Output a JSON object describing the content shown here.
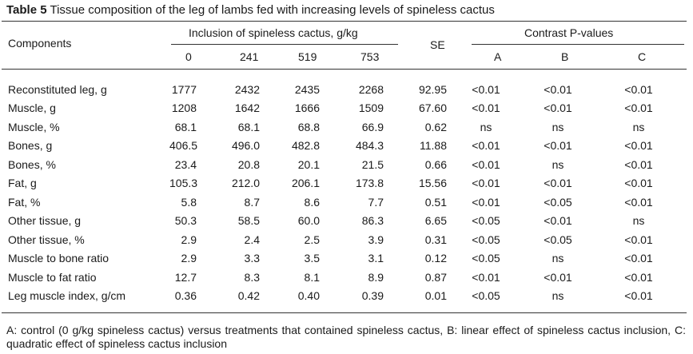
{
  "caption": {
    "label": "Table 5",
    "text": "Tissue composition of the leg of lambs fed with increasing levels of spineless cactus"
  },
  "header": {
    "components": "Components",
    "inclusion_group": "Inclusion of spineless cactus, g/kg",
    "levels": [
      "0",
      "241",
      "519",
      "753"
    ],
    "se": "SE",
    "contrast_group": "Contrast P-values",
    "contrasts": [
      "A",
      "B",
      "C"
    ]
  },
  "rows": [
    {
      "component": "Reconstituted leg, g",
      "values": [
        "1777",
        "2432",
        "2435",
        "2268"
      ],
      "se": "92.95",
      "p": [
        "<0.01",
        "<0.01",
        "<0.01"
      ]
    },
    {
      "component": "Muscle, g",
      "values": [
        "1208",
        "1642",
        "1666",
        "1509"
      ],
      "se": "67.60",
      "p": [
        "<0.01",
        "<0.01",
        "<0.01"
      ]
    },
    {
      "component": "Muscle, %",
      "values": [
        "68.1",
        "68.1",
        "68.8",
        "66.9"
      ],
      "se": "0.62",
      "p": [
        "ns",
        "ns",
        "ns"
      ]
    },
    {
      "component": "Bones, g",
      "values": [
        "406.5",
        "496.0",
        "482.8",
        "484.3"
      ],
      "se": "11.88",
      "p": [
        "<0.01",
        "<0.01",
        "<0.01"
      ]
    },
    {
      "component": "Bones, %",
      "values": [
        "23.4",
        "20.8",
        "20.1",
        "21.5"
      ],
      "se": "0.66",
      "p": [
        "<0.01",
        "ns",
        "<0.01"
      ]
    },
    {
      "component": "Fat, g",
      "values": [
        "105.3",
        "212.0",
        "206.1",
        "173.8"
      ],
      "se": "15.56",
      "p": [
        "<0.01",
        "<0.01",
        "<0.01"
      ]
    },
    {
      "component": "Fat, %",
      "values": [
        "5.8",
        "8.7",
        "8.6",
        "7.7"
      ],
      "se": "0.51",
      "p": [
        "<0.01",
        "<0.05",
        "<0.01"
      ]
    },
    {
      "component": "Other tissue, g",
      "values": [
        "50.3",
        "58.5",
        "60.0",
        "86.3"
      ],
      "se": "6.65",
      "p": [
        "<0.05",
        "<0.01",
        "ns"
      ]
    },
    {
      "component": "Other tissue, %",
      "values": [
        "2.9",
        "2.4",
        "2.5",
        "3.9"
      ],
      "se": "0.31",
      "p": [
        "<0.05",
        "<0.05",
        "<0.01"
      ]
    },
    {
      "component": "Muscle to bone ratio",
      "values": [
        "2.9",
        "3.3",
        "3.5",
        "3.1"
      ],
      "se": "0.12",
      "p": [
        "<0.05",
        "ns",
        "<0.01"
      ]
    },
    {
      "component": "Muscle to fat ratio",
      "values": [
        "12.7",
        "8.3",
        "8.1",
        "8.9"
      ],
      "se": "0.87",
      "p": [
        "<0.01",
        "<0.01",
        "<0.01"
      ]
    },
    {
      "component": "Leg muscle index, g/cm",
      "values": [
        "0.36",
        "0.42",
        "0.40",
        "0.39"
      ],
      "se": "0.01",
      "p": [
        "<0.05",
        "ns",
        "<0.01"
      ]
    }
  ],
  "footnote": "A: control (0 g/kg spineless cactus) versus treatments that contained spineless cactus, B: linear effect of spineless cactus inclusion, C: quadratic effect of spineless cactus inclusion"
}
